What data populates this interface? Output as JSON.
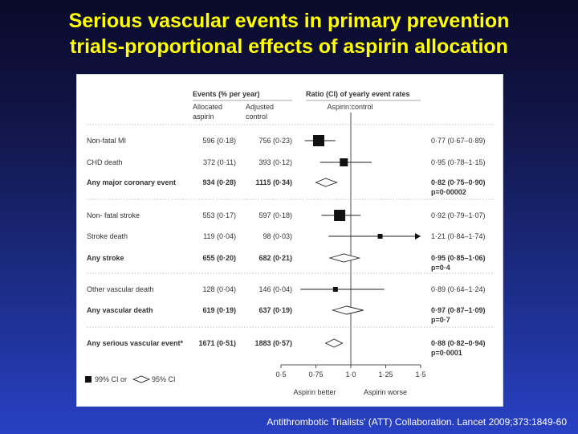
{
  "slide": {
    "title_line1": "Serious vascular events in primary prevention",
    "title_line2": "trials-proportional effects of aspirin allocation",
    "citation": "Antithrombotic Trialists' (ATT) Collaboration. Lancet 2009;373:1849-60",
    "title_color": "#ffff00"
  },
  "chart_data": {
    "type": "forest",
    "headers": {
      "events": "Events (% per year)",
      "allocated": [
        "Allocated",
        "aspirin"
      ],
      "adjusted": [
        "Adjusted",
        "control"
      ],
      "ratio": "Ratio (CI) of yearly event rates",
      "comparison": "Aspirin:control"
    },
    "rows": [
      {
        "label": "Non-fatal MI",
        "aspirin": "596 (0·18)",
        "control": "756 (0·23)",
        "ratio_text": "0·77 (0·67–0·89)",
        "p_text": "",
        "ratio": 0.77,
        "ci99": [
          0.67,
          0.89
        ],
        "ci95": [
          0.67,
          0.89
        ],
        "bold": false,
        "marker": "square",
        "size": "large"
      },
      {
        "label": "CHD death",
        "aspirin": "372 (0·11)",
        "control": "393 (0·12)",
        "ratio_text": "0·95 (0·78–1·15)",
        "p_text": "",
        "ratio": 0.95,
        "ci99": [
          0.78,
          1.15
        ],
        "ci95": [
          0.78,
          1.15
        ],
        "bold": false,
        "marker": "square",
        "size": "medium"
      },
      {
        "label": "Any major coronary event",
        "aspirin": "934 (0·28)",
        "control": "1115 (0·34)",
        "ratio_text": "0·82 (0·75–0·90)",
        "p_text": "p=0·00002",
        "ratio": 0.82,
        "ci99": [
          0.75,
          0.9
        ],
        "ci95": [
          0.75,
          0.9
        ],
        "bold": true,
        "marker": "diamond"
      },
      {
        "label": "Non- fatal stroke",
        "aspirin": "553 (0·17)",
        "control": "597 (0·18)",
        "ratio_text": "0·92 (0·79–1·07)",
        "p_text": "",
        "ratio": 0.92,
        "ci99": [
          0.79,
          1.07
        ],
        "ci95": [
          0.79,
          1.07
        ],
        "bold": false,
        "marker": "square",
        "size": "large"
      },
      {
        "label": "Stroke death",
        "aspirin": "119 (0·04)",
        "control": "98 (0·03)",
        "ratio_text": "1·21 (0·84–1·74)",
        "p_text": "",
        "ratio": 1.21,
        "ci99": [
          0.84,
          1.74
        ],
        "ci95": [
          0.84,
          1.74
        ],
        "bold": false,
        "marker": "square",
        "size": "small",
        "arrow_right": true
      },
      {
        "label": "Any stroke",
        "aspirin": "655 (0·20)",
        "control": "682 (0·21)",
        "ratio_text": "0·95 (0·85–1·06)",
        "p_text": "p=0·4",
        "ratio": 0.95,
        "ci99": [
          0.85,
          1.06
        ],
        "ci95": [
          0.85,
          1.06
        ],
        "bold": true,
        "marker": "diamond"
      },
      {
        "label": "Other vascular death",
        "aspirin": "128 (0·04)",
        "control": "146 (0·04)",
        "ratio_text": "0·89 (0·64–1·24)",
        "p_text": "",
        "ratio": 0.89,
        "ci99": [
          0.64,
          1.24
        ],
        "ci95": [
          0.64,
          1.24
        ],
        "bold": false,
        "marker": "square",
        "size": "small"
      },
      {
        "label": "Any vascular death",
        "aspirin": "619 (0·19)",
        "control": "637 (0·19)",
        "ratio_text": "0·97 (0·87–1·09)",
        "p_text": "p=0·7",
        "ratio": 0.97,
        "ci99": [
          0.87,
          1.09
        ],
        "ci95": [
          0.87,
          1.09
        ],
        "bold": true,
        "marker": "diamond"
      },
      {
        "label": "Any serious vascular event*",
        "aspirin": "1671 (0·51)",
        "control": "1883 (0·57)",
        "ratio_text": "0·88 (0·82–0·94)",
        "p_text": "p=0·0001",
        "ratio": 0.88,
        "ci99": [
          0.82,
          0.94
        ],
        "ci95": [
          0.82,
          0.94
        ],
        "bold": true,
        "marker": "diamond"
      }
    ],
    "x_ticks": [
      "0·5",
      "0·75",
      "1·0",
      "1·25",
      "1·5"
    ],
    "x_tick_values": [
      0.5,
      0.75,
      1.0,
      1.25,
      1.5
    ],
    "xlim": [
      0.5,
      1.5
    ],
    "reference_value": 1.0,
    "x_left_label": "Aspirin better",
    "x_right_label": "Aspirin worse",
    "legend": {
      "square": "99% CI or",
      "diamond": "95% CI"
    }
  }
}
